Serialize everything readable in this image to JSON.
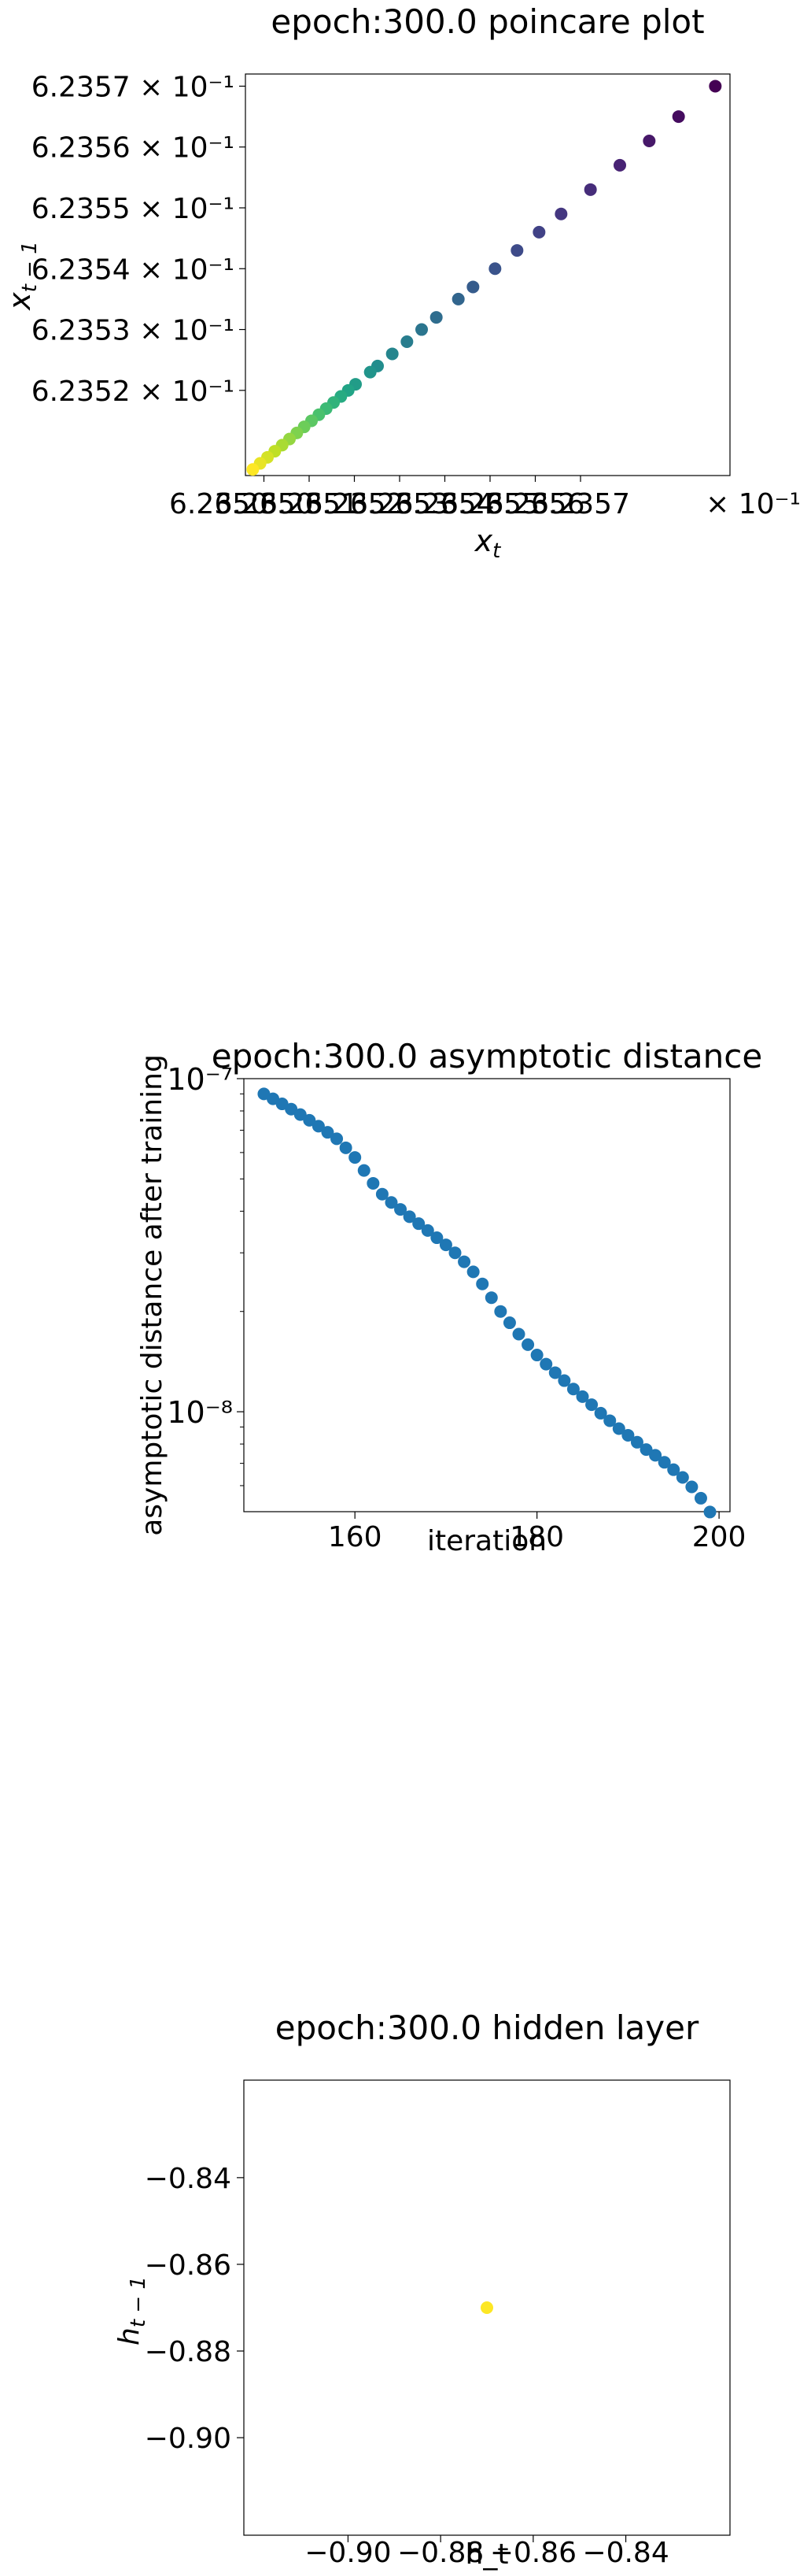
{
  "chart_data": [
    {
      "type": "scatter",
      "title": "epoch:300.0 poincare plot",
      "xlabel": "x_t",
      "ylabel": "x_{t-1}",
      "xscale": "log",
      "yscale": "log",
      "xlim": [
        0.623506,
        0.623572
      ],
      "ylim": [
        0.623506,
        0.623572
      ],
      "xtick_labels": [
        "6.2350",
        "6.2350",
        "6.2351",
        "6.2352",
        "6.2353",
        "6.2354",
        "6.2355",
        "6.2356",
        "6.2357"
      ],
      "xtick_exponent_label": "× 10⁻¹",
      "ytick_labels": [
        "6.2352 × 10⁻¹",
        "6.2353 × 10⁻¹",
        "6.2354 × 10⁻¹",
        "6.2355 × 10⁻¹",
        "6.2356 × 10⁻¹",
        "6.2357 × 10⁻¹"
      ],
      "ytick_values": [
        0.62352,
        0.62353,
        0.62354,
        0.62355,
        0.62356,
        0.62357
      ],
      "colormap": "viridis",
      "grid": false,
      "points": [
        {
          "x": 0.62357,
          "y": 0.62357
        },
        {
          "x": 0.623565,
          "y": 0.623565
        },
        {
          "x": 0.623561,
          "y": 0.623561
        },
        {
          "x": 0.623557,
          "y": 0.623557
        },
        {
          "x": 0.623553,
          "y": 0.623553
        },
        {
          "x": 0.623549,
          "y": 0.623549
        },
        {
          "x": 0.623546,
          "y": 0.623546
        },
        {
          "x": 0.623543,
          "y": 0.623543
        },
        {
          "x": 0.62354,
          "y": 0.62354
        },
        {
          "x": 0.623537,
          "y": 0.623537
        },
        {
          "x": 0.623535,
          "y": 0.623535
        },
        {
          "x": 0.623532,
          "y": 0.623532
        },
        {
          "x": 0.62353,
          "y": 0.62353
        },
        {
          "x": 0.623528,
          "y": 0.623528
        },
        {
          "x": 0.623526,
          "y": 0.623526
        },
        {
          "x": 0.623524,
          "y": 0.623524
        },
        {
          "x": 0.623523,
          "y": 0.623523
        },
        {
          "x": 0.623521,
          "y": 0.623521
        },
        {
          "x": 0.62352,
          "y": 0.62352
        },
        {
          "x": 0.623519,
          "y": 0.623519
        },
        {
          "x": 0.623518,
          "y": 0.623518
        },
        {
          "x": 0.623517,
          "y": 0.623517
        },
        {
          "x": 0.623516,
          "y": 0.623516
        },
        {
          "x": 0.623515,
          "y": 0.623515
        },
        {
          "x": 0.623514,
          "y": 0.623514
        },
        {
          "x": 0.623513,
          "y": 0.623513
        },
        {
          "x": 0.623512,
          "y": 0.623512
        },
        {
          "x": 0.623511,
          "y": 0.623511
        },
        {
          "x": 0.62351,
          "y": 0.62351
        },
        {
          "x": 0.623509,
          "y": 0.623509
        },
        {
          "x": 0.623508,
          "y": 0.623508
        },
        {
          "x": 0.623507,
          "y": 0.623507
        }
      ]
    },
    {
      "type": "scatter",
      "title": "epoch:300.0 asymptotic distance",
      "xlabel": "iteration",
      "ylabel": "asymptotic distance after training",
      "yscale": "log",
      "xlim": [
        147.8,
        201.2
      ],
      "ylim_log10": [
        -8.3,
        -7.0
      ],
      "xticks": [
        160,
        180,
        200
      ],
      "ytick_labels": [
        {
          "label": "10⁻⁷",
          "value_log10": -7
        },
        {
          "label": "10⁻⁸",
          "value_log10": -8
        }
      ],
      "color": "#1f77b4",
      "grid": false,
      "x": [
        150,
        151,
        152,
        153,
        154,
        155,
        156,
        157,
        158,
        159,
        160,
        161,
        162,
        163,
        164,
        165,
        166,
        167,
        168,
        169,
        170,
        171,
        172,
        173,
        174,
        175,
        176,
        177,
        178,
        179,
        180,
        181,
        182,
        183,
        184,
        185,
        186,
        187,
        188,
        189,
        190,
        191,
        192,
        193,
        194,
        195,
        196,
        197,
        198,
        199
      ],
      "y": [
        9e-08,
        8.7e-08,
        8.4e-08,
        8.1e-08,
        7.8e-08,
        7.5e-08,
        7.2e-08,
        6.9e-08,
        6.6e-08,
        6.2e-08,
        5.8e-08,
        5.3e-08,
        4.85e-08,
        4.5e-08,
        4.25e-08,
        4.05e-08,
        3.85e-08,
        3.67e-08,
        3.5e-08,
        3.33e-08,
        3.17e-08,
        3e-08,
        2.82e-08,
        2.63e-08,
        2.42e-08,
        2.2e-08,
        2e-08,
        1.85e-08,
        1.71e-08,
        1.59e-08,
        1.48e-08,
        1.39e-08,
        1.31e-08,
        1.24e-08,
        1.17e-08,
        1.11e-08,
        1.05e-08,
        9.9e-09,
        9.4e-09,
        8.9e-09,
        8.5e-09,
        8.1e-09,
        7.7e-09,
        7.4e-09,
        7.05e-09,
        6.7e-09,
        6.35e-09,
        5.95e-09,
        5.5e-09,
        5e-09
      ]
    },
    {
      "type": "scatter",
      "title": "epoch:300.0 hidden layer",
      "xlabel": "h_t",
      "ylabel": "h_{t-1}",
      "xlim": [
        -0.9225,
        -0.8175
      ],
      "ylim": [
        -0.9225,
        -0.8175
      ],
      "xticks": [
        -0.9,
        -0.88,
        -0.86,
        -0.84
      ],
      "yticks": [
        -0.9,
        -0.88,
        -0.86,
        -0.84
      ],
      "xtick_labels": [
        "−0.90",
        "−0.88",
        "−0.86",
        "−0.84"
      ],
      "ytick_labels": [
        "−0.90",
        "−0.88",
        "−0.86",
        "−0.84"
      ],
      "color": "#fde725",
      "grid": false,
      "points": [
        {
          "x": -0.87,
          "y": -0.87
        }
      ]
    }
  ]
}
